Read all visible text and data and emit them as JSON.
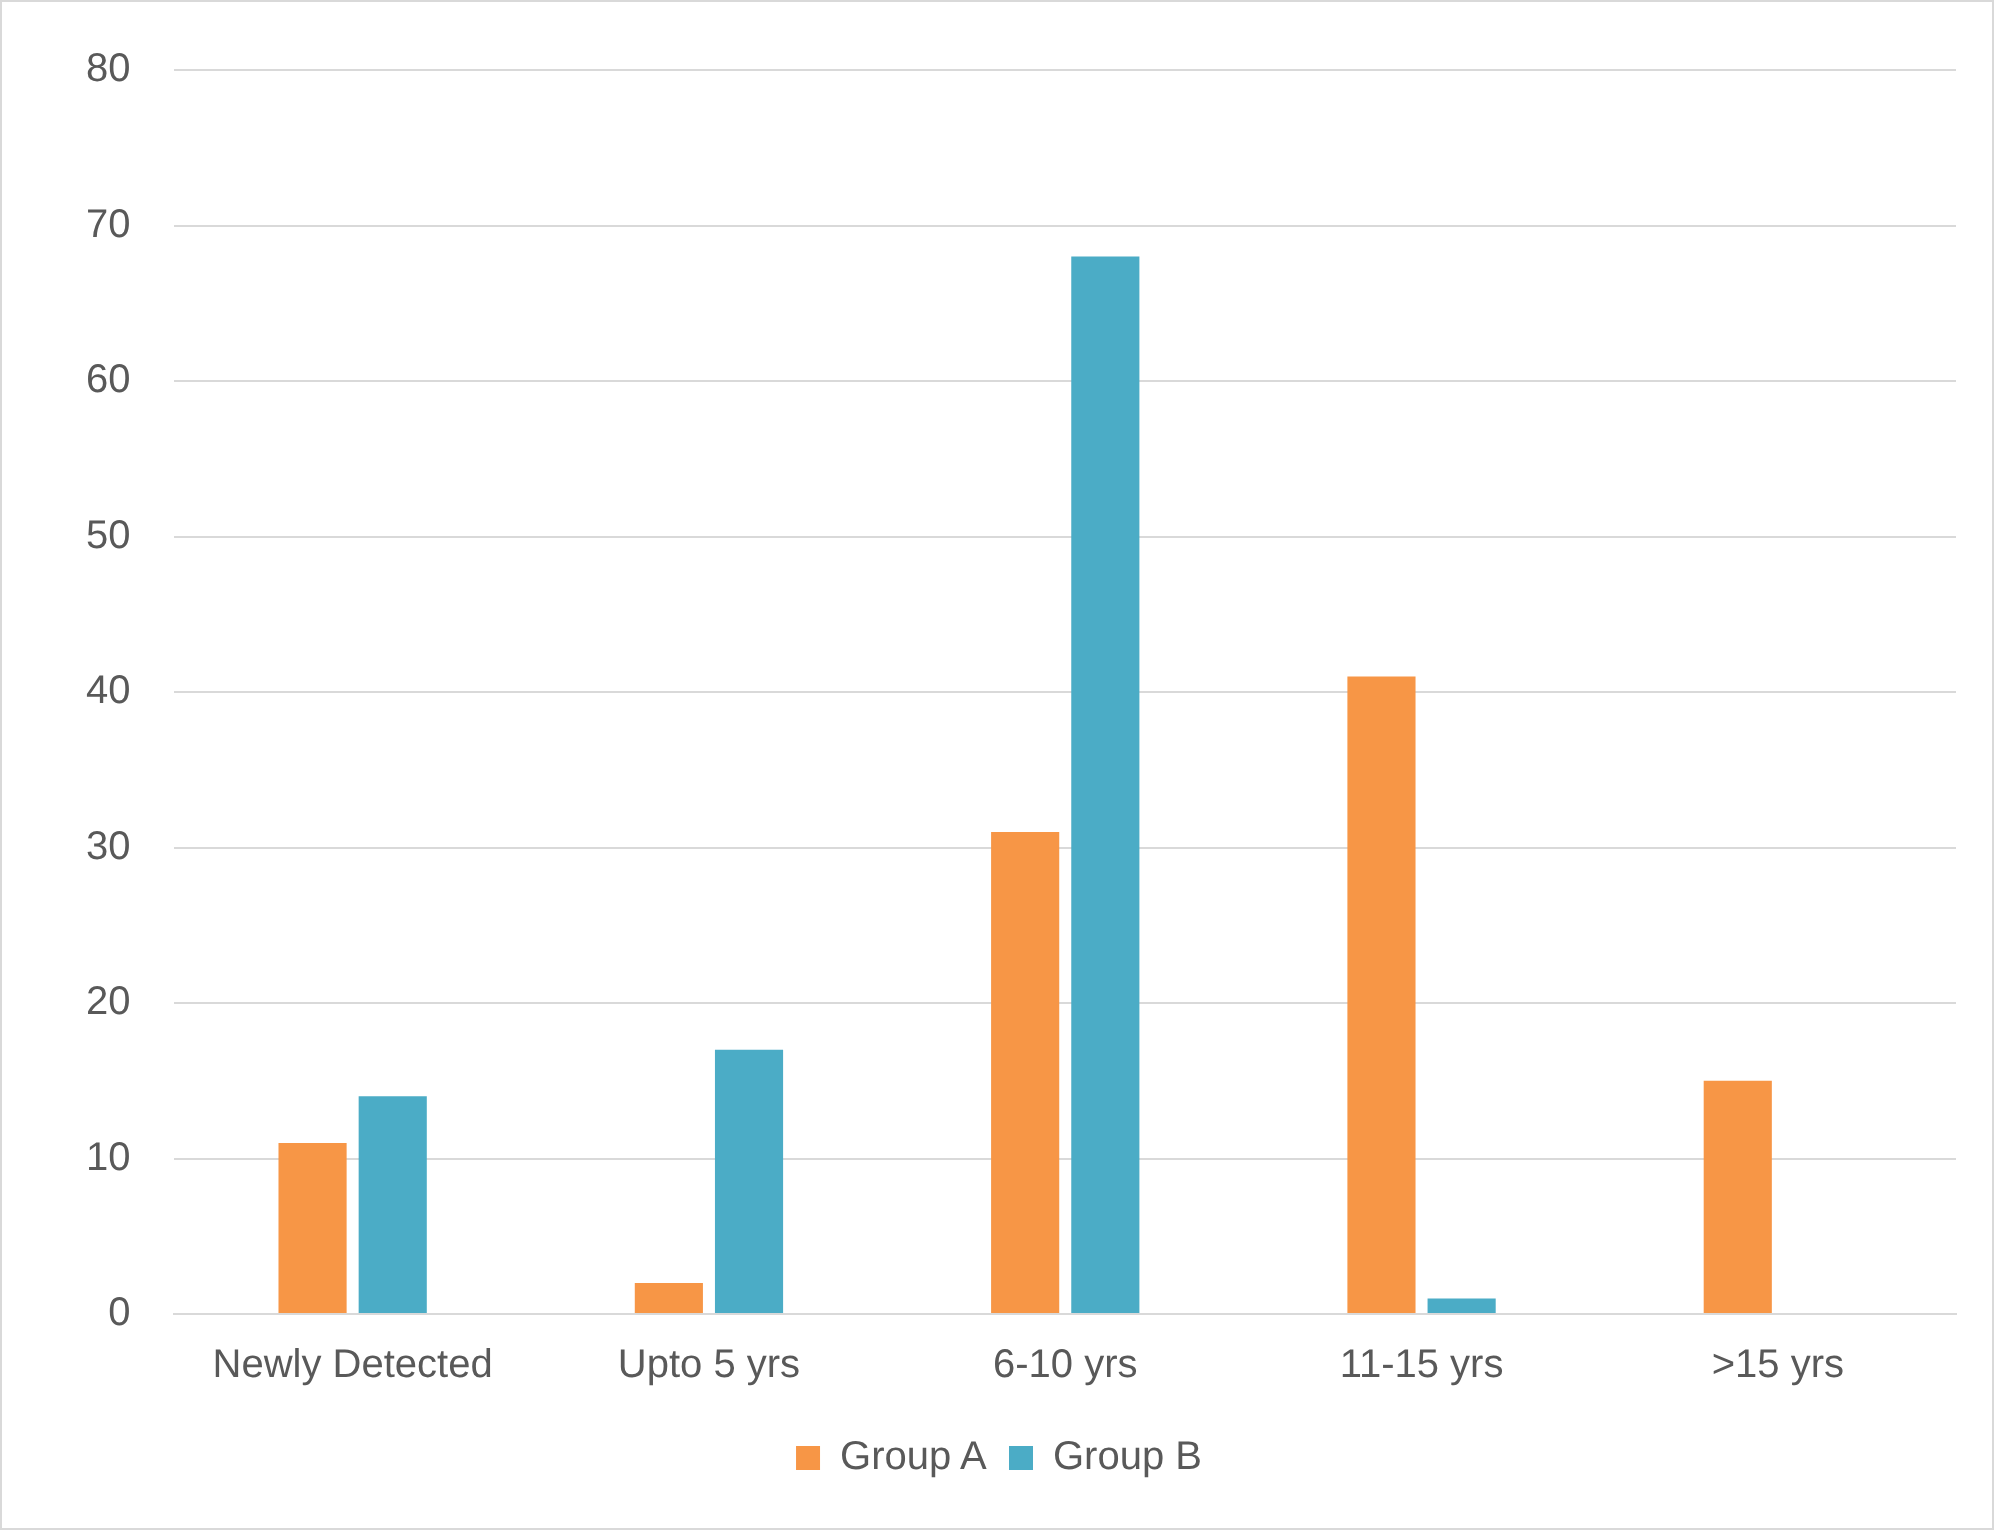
{
  "chart_data": {
    "type": "bar",
    "categories": [
      "Newly Detected",
      "Upto 5 yrs",
      "6-10 yrs",
      "11-15 yrs",
      ">15 yrs"
    ],
    "series": [
      {
        "name": "Group A",
        "color": "#f79646",
        "values": [
          11,
          2,
          31,
          41,
          15
        ]
      },
      {
        "name": "Group B",
        "color": "#4bacc6",
        "values": [
          14,
          17,
          68,
          1,
          0
        ]
      }
    ],
    "ylim": [
      0,
      80
    ],
    "yticks": [
      0,
      10,
      20,
      30,
      40,
      50,
      60,
      70,
      80
    ],
    "grid": "y",
    "legend": "bottom"
  }
}
